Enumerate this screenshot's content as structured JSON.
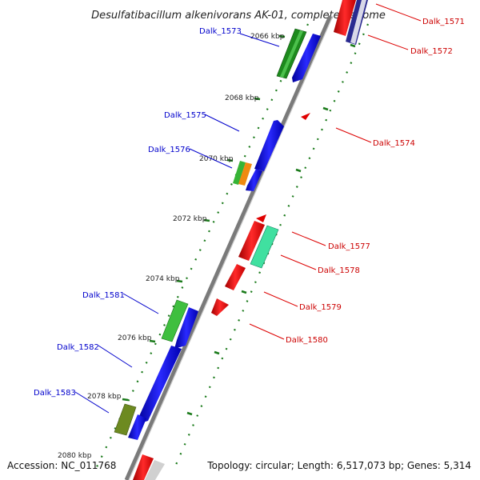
{
  "title": "Desulfatibacillum alkenivorans AK-01, complete genome",
  "accession": "Accession: NC_011768",
  "topology": "Topology: circular; Length: 6,517,073 bp; Genes: 5,314",
  "ticks": [
    "2066 kbp",
    "2068 kbp",
    "2070 kbp",
    "2072 kbp",
    "2074 kbp",
    "2076 kbp",
    "2078 kbp",
    "2080 kbp"
  ],
  "genes_left": [
    "Dalk_1573",
    "Dalk_1575",
    "Dalk_1576",
    "Dalk_1581",
    "Dalk_1582",
    "Dalk_1583"
  ],
  "genes_right": [
    "Dalk_1571",
    "Dalk_1572",
    "Dalk_1574",
    "Dalk_1577",
    "Dalk_1578",
    "Dalk_1579",
    "Dalk_1580"
  ],
  "colors": {
    "left_label": "#0000cc",
    "right_label": "#cc0000",
    "backbone": "#808080",
    "tick": "#1a7a1a"
  }
}
